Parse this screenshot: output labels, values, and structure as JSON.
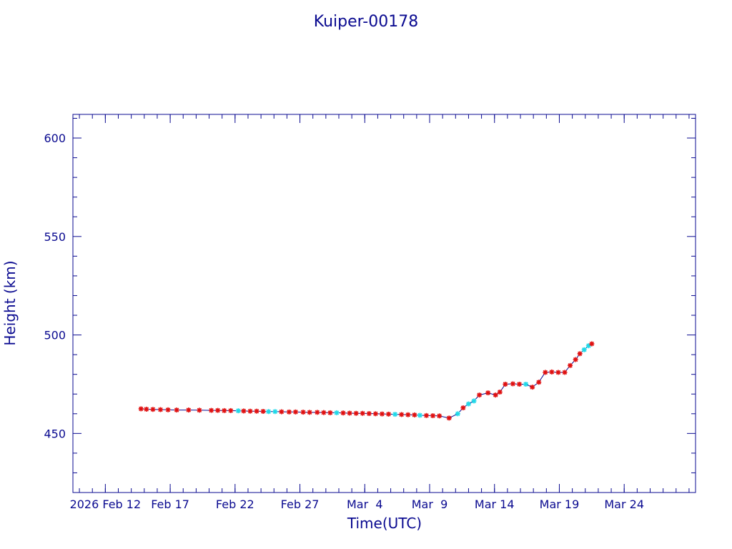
{
  "chart_data": {
    "type": "scatter",
    "title": "Kuiper-00178",
    "xlabel": "Time(UTC)",
    "ylabel": "Height (km)",
    "x_axis_type": "date",
    "xlim": [
      "2026-02-09T12:00",
      "2026-03-29T12:00"
    ],
    "ylim": [
      420,
      612
    ],
    "y_ticks": [
      450,
      500,
      550,
      600
    ],
    "x_ticks": [
      {
        "date": "2026-02-12",
        "label": "2026 Feb 12"
      },
      {
        "date": "2026-02-17",
        "label": "Feb 17"
      },
      {
        "date": "2026-02-22",
        "label": "Feb 22"
      },
      {
        "date": "2026-02-27",
        "label": "Feb 27"
      },
      {
        "date": "2026-03-04",
        "label": "Mar  4"
      },
      {
        "date": "2026-03-09",
        "label": "Mar  9"
      },
      {
        "date": "2026-03-14",
        "label": "Mar 14"
      },
      {
        "date": "2026-03-19",
        "label": "Mar 19"
      },
      {
        "date": "2026-03-24",
        "label": "Mar 24"
      }
    ],
    "grid": false,
    "colors": {
      "axis": "#0a0a90",
      "line": "#0a0a90",
      "marker_primary": "#e01010",
      "marker_secondary": "#20d8e8"
    },
    "series": [
      {
        "marker": "asterisk",
        "points": [
          {
            "x": "2026-02-14T18:00",
            "y": 462.5,
            "c": "r"
          },
          {
            "x": "2026-02-15T04:00",
            "y": 462.3,
            "c": "r"
          },
          {
            "x": "2026-02-15T16:00",
            "y": 462.2,
            "c": "r"
          },
          {
            "x": "2026-02-16T06:00",
            "y": 462.1,
            "c": "r"
          },
          {
            "x": "2026-02-16T20:00",
            "y": 462.0,
            "c": "r"
          },
          {
            "x": "2026-02-17T12:00",
            "y": 461.9,
            "c": "r"
          },
          {
            "x": "2026-02-18T10:00",
            "y": 461.9,
            "c": "r"
          },
          {
            "x": "2026-02-19T06:00",
            "y": 461.8,
            "c": "r"
          },
          {
            "x": "2026-02-20T04:00",
            "y": 461.7,
            "c": "r"
          },
          {
            "x": "2026-02-20T16:00",
            "y": 461.7,
            "c": "r"
          },
          {
            "x": "2026-02-21T04:00",
            "y": 461.6,
            "c": "r"
          },
          {
            "x": "2026-02-21T16:00",
            "y": 461.6,
            "c": "r"
          },
          {
            "x": "2026-02-22T06:00",
            "y": 461.5,
            "c": "c"
          },
          {
            "x": "2026-02-22T16:00",
            "y": 461.4,
            "c": "r"
          },
          {
            "x": "2026-02-23T04:00",
            "y": 461.3,
            "c": "r"
          },
          {
            "x": "2026-02-23T16:00",
            "y": 461.3,
            "c": "r"
          },
          {
            "x": "2026-02-24T04:00",
            "y": 461.2,
            "c": "r"
          },
          {
            "x": "2026-02-24T14:00",
            "y": 461.1,
            "c": "c"
          },
          {
            "x": "2026-02-25T02:00",
            "y": 461.1,
            "c": "c"
          },
          {
            "x": "2026-02-25T14:00",
            "y": 461.0,
            "c": "r"
          },
          {
            "x": "2026-02-26T04:00",
            "y": 460.9,
            "c": "r"
          },
          {
            "x": "2026-02-26T16:00",
            "y": 460.9,
            "c": "r"
          },
          {
            "x": "2026-02-27T06:00",
            "y": 460.8,
            "c": "r"
          },
          {
            "x": "2026-02-27T18:00",
            "y": 460.7,
            "c": "r"
          },
          {
            "x": "2026-02-28T08:00",
            "y": 460.7,
            "c": "r"
          },
          {
            "x": "2026-02-28T20:00",
            "y": 460.6,
            "c": "r"
          },
          {
            "x": "2026-03-01T08:00",
            "y": 460.5,
            "c": "r"
          },
          {
            "x": "2026-03-01T20:00",
            "y": 460.5,
            "c": "c"
          },
          {
            "x": "2026-03-02T08:00",
            "y": 460.4,
            "c": "r"
          },
          {
            "x": "2026-03-02T20:00",
            "y": 460.3,
            "c": "r"
          },
          {
            "x": "2026-03-03T08:00",
            "y": 460.2,
            "c": "r"
          },
          {
            "x": "2026-03-03T20:00",
            "y": 460.2,
            "c": "r"
          },
          {
            "x": "2026-03-04T08:00",
            "y": 460.1,
            "c": "r"
          },
          {
            "x": "2026-03-04T20:00",
            "y": 460.0,
            "c": "r"
          },
          {
            "x": "2026-03-05T08:00",
            "y": 459.9,
            "c": "r"
          },
          {
            "x": "2026-03-05T20:00",
            "y": 459.8,
            "c": "r"
          },
          {
            "x": "2026-03-06T08:00",
            "y": 459.7,
            "c": "c"
          },
          {
            "x": "2026-03-06T20:00",
            "y": 459.6,
            "c": "r"
          },
          {
            "x": "2026-03-07T08:00",
            "y": 459.5,
            "c": "r"
          },
          {
            "x": "2026-03-07T20:00",
            "y": 459.4,
            "c": "r"
          },
          {
            "x": "2026-03-08T06:00",
            "y": 459.2,
            "c": "c"
          },
          {
            "x": "2026-03-08T18:00",
            "y": 459.1,
            "c": "r"
          },
          {
            "x": "2026-03-09T06:00",
            "y": 459.0,
            "c": "r"
          },
          {
            "x": "2026-03-09T18:00",
            "y": 458.9,
            "c": "r"
          },
          {
            "x": "2026-03-10T12:00",
            "y": 457.8,
            "c": "r"
          },
          {
            "x": "2026-03-11T04:00",
            "y": 460.0,
            "c": "c"
          },
          {
            "x": "2026-03-11T14:00",
            "y": 463.0,
            "c": "r"
          },
          {
            "x": "2026-03-12T00:00",
            "y": 465.0,
            "c": "c"
          },
          {
            "x": "2026-03-12T10:00",
            "y": 466.5,
            "c": "c"
          },
          {
            "x": "2026-03-12T20:00",
            "y": 469.5,
            "c": "r"
          },
          {
            "x": "2026-03-13T12:00",
            "y": 470.6,
            "c": "r"
          },
          {
            "x": "2026-03-14T02:00",
            "y": 469.5,
            "c": "r"
          },
          {
            "x": "2026-03-14T10:00",
            "y": 471.0,
            "c": "r"
          },
          {
            "x": "2026-03-14T20:00",
            "y": 475.0,
            "c": "r"
          },
          {
            "x": "2026-03-15T10:00",
            "y": 475.2,
            "c": "r"
          },
          {
            "x": "2026-03-15T22:00",
            "y": 475.0,
            "c": "r"
          },
          {
            "x": "2026-03-16T10:00",
            "y": 475.0,
            "c": "c"
          },
          {
            "x": "2026-03-16T22:00",
            "y": 473.5,
            "c": "r"
          },
          {
            "x": "2026-03-17T10:00",
            "y": 476.0,
            "c": "r"
          },
          {
            "x": "2026-03-17T22:00",
            "y": 481.0,
            "c": "r"
          },
          {
            "x": "2026-03-18T10:00",
            "y": 481.2,
            "c": "r"
          },
          {
            "x": "2026-03-18T22:00",
            "y": 481.0,
            "c": "r"
          },
          {
            "x": "2026-03-19T10:00",
            "y": 481.0,
            "c": "r"
          },
          {
            "x": "2026-03-19T20:00",
            "y": 484.5,
            "c": "r"
          },
          {
            "x": "2026-03-20T06:00",
            "y": 487.5,
            "c": "r"
          },
          {
            "x": "2026-03-20T14:00",
            "y": 490.5,
            "c": "r"
          },
          {
            "x": "2026-03-20T22:00",
            "y": 492.5,
            "c": "c"
          },
          {
            "x": "2026-03-21T06:00",
            "y": 494.5,
            "c": "c"
          },
          {
            "x": "2026-03-21T12:00",
            "y": 495.5,
            "c": "r"
          }
        ]
      }
    ]
  }
}
